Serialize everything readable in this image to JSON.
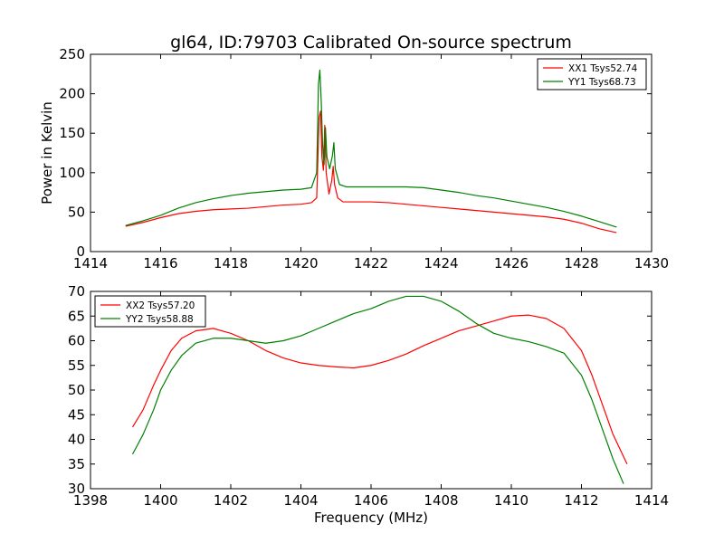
{
  "figure_title": "gl64, ID:79703 Calibrated On-source spectrum",
  "chart_data": [
    {
      "type": "line",
      "title": "gl64, ID:79703 Calibrated On-source spectrum",
      "xlabel": "",
      "ylabel": "Power in Kelvin",
      "xlim": [
        1414,
        1430
      ],
      "ylim": [
        0,
        250
      ],
      "xticks": [
        1414,
        1416,
        1418,
        1420,
        1422,
        1424,
        1426,
        1428,
        1430
      ],
      "yticks": [
        0,
        50,
        100,
        150,
        200,
        250
      ],
      "grid": false,
      "legend_position": "top-right",
      "series": [
        {
          "name": "XX1 Tsys52.74",
          "color": "#ff0000",
          "points": [
            [
              1415.0,
              32
            ],
            [
              1415.5,
              37
            ],
            [
              1416.0,
              43
            ],
            [
              1416.5,
              48
            ],
            [
              1417.0,
              51
            ],
            [
              1417.5,
              53
            ],
            [
              1418.0,
              54
            ],
            [
              1418.5,
              55
            ],
            [
              1419.0,
              57
            ],
            [
              1419.5,
              59
            ],
            [
              1420.0,
              60
            ],
            [
              1420.3,
              62
            ],
            [
              1420.45,
              68
            ],
            [
              1420.52,
              170
            ],
            [
              1420.56,
              178
            ],
            [
              1420.6,
              120
            ],
            [
              1420.64,
              103
            ],
            [
              1420.68,
              160
            ],
            [
              1420.72,
              100
            ],
            [
              1420.8,
              73
            ],
            [
              1420.88,
              90
            ],
            [
              1420.92,
              108
            ],
            [
              1420.96,
              85
            ],
            [
              1421.05,
              68
            ],
            [
              1421.2,
              63
            ],
            [
              1421.5,
              63
            ],
            [
              1422.0,
              63
            ],
            [
              1422.5,
              62
            ],
            [
              1423.0,
              60
            ],
            [
              1423.5,
              58
            ],
            [
              1424.0,
              56
            ],
            [
              1424.5,
              54
            ],
            [
              1425.0,
              52
            ],
            [
              1425.5,
              50
            ],
            [
              1426.0,
              48
            ],
            [
              1426.5,
              46
            ],
            [
              1427.0,
              44
            ],
            [
              1427.5,
              41
            ],
            [
              1428.0,
              36
            ],
            [
              1428.5,
              29
            ],
            [
              1429.0,
              24
            ]
          ]
        },
        {
          "name": "YY1 Tsys68.73",
          "color": "#008000",
          "points": [
            [
              1415.0,
              33
            ],
            [
              1415.5,
              39
            ],
            [
              1416.0,
              46
            ],
            [
              1416.5,
              55
            ],
            [
              1417.0,
              62
            ],
            [
              1417.5,
              67
            ],
            [
              1418.0,
              71
            ],
            [
              1418.5,
              74
            ],
            [
              1419.0,
              76
            ],
            [
              1419.5,
              78
            ],
            [
              1420.0,
              79
            ],
            [
              1420.3,
              81
            ],
            [
              1420.45,
              100
            ],
            [
              1420.5,
              212
            ],
            [
              1420.54,
              230
            ],
            [
              1420.58,
              190
            ],
            [
              1420.62,
              135
            ],
            [
              1420.66,
              110
            ],
            [
              1420.7,
              157
            ],
            [
              1420.74,
              120
            ],
            [
              1420.82,
              105
            ],
            [
              1420.9,
              122
            ],
            [
              1420.94,
              138
            ],
            [
              1420.98,
              105
            ],
            [
              1421.1,
              85
            ],
            [
              1421.3,
              82
            ],
            [
              1421.5,
              82
            ],
            [
              1422.0,
              82
            ],
            [
              1422.5,
              82
            ],
            [
              1423.0,
              82
            ],
            [
              1423.5,
              81
            ],
            [
              1424.0,
              78
            ],
            [
              1424.5,
              75
            ],
            [
              1425.0,
              71
            ],
            [
              1425.5,
              68
            ],
            [
              1426.0,
              64
            ],
            [
              1426.5,
              60
            ],
            [
              1427.0,
              56
            ],
            [
              1427.5,
              51
            ],
            [
              1428.0,
              45
            ],
            [
              1428.5,
              38
            ],
            [
              1429.0,
              31
            ]
          ]
        }
      ]
    },
    {
      "type": "line",
      "title": "",
      "xlabel": "Frequency (MHz)",
      "ylabel": "",
      "xlim": [
        1398,
        1414
      ],
      "ylim": [
        30,
        70
      ],
      "xticks": [
        1398,
        1400,
        1402,
        1404,
        1406,
        1408,
        1410,
        1412,
        1414
      ],
      "yticks": [
        30,
        35,
        40,
        45,
        50,
        55,
        60,
        65,
        70
      ],
      "grid": false,
      "legend_position": "top-left",
      "series": [
        {
          "name": "XX2 Tsys57.20",
          "color": "#ff0000",
          "points": [
            [
              1399.2,
              42.5
            ],
            [
              1399.5,
              46
            ],
            [
              1399.8,
              51
            ],
            [
              1400.0,
              54
            ],
            [
              1400.3,
              58
            ],
            [
              1400.6,
              60.5
            ],
            [
              1401.0,
              62
            ],
            [
              1401.5,
              62.5
            ],
            [
              1402.0,
              61.5
            ],
            [
              1402.5,
              60
            ],
            [
              1403.0,
              58
            ],
            [
              1403.5,
              56.5
            ],
            [
              1404.0,
              55.5
            ],
            [
              1404.5,
              55
            ],
            [
              1405.0,
              54.7
            ],
            [
              1405.5,
              54.5
            ],
            [
              1406.0,
              55
            ],
            [
              1406.5,
              56
            ],
            [
              1407.0,
              57.3
            ],
            [
              1407.5,
              59
            ],
            [
              1408.0,
              60.5
            ],
            [
              1408.5,
              62
            ],
            [
              1409.0,
              63
            ],
            [
              1409.5,
              64
            ],
            [
              1410.0,
              65
            ],
            [
              1410.5,
              65.2
            ],
            [
              1411.0,
              64.5
            ],
            [
              1411.5,
              62.5
            ],
            [
              1412.0,
              58
            ],
            [
              1412.3,
              53
            ],
            [
              1412.6,
              47
            ],
            [
              1412.9,
              41
            ],
            [
              1413.3,
              35
            ]
          ]
        },
        {
          "name": "YY2 Tsys58.88",
          "color": "#008000",
          "points": [
            [
              1399.2,
              37
            ],
            [
              1399.5,
              41
            ],
            [
              1399.8,
              46
            ],
            [
              1400.0,
              50
            ],
            [
              1400.3,
              54
            ],
            [
              1400.6,
              57
            ],
            [
              1401.0,
              59.5
            ],
            [
              1401.5,
              60.5
            ],
            [
              1402.0,
              60.5
            ],
            [
              1402.5,
              60
            ],
            [
              1403.0,
              59.5
            ],
            [
              1403.5,
              60
            ],
            [
              1404.0,
              61
            ],
            [
              1404.5,
              62.5
            ],
            [
              1405.0,
              64
            ],
            [
              1405.5,
              65.5
            ],
            [
              1406.0,
              66.5
            ],
            [
              1406.5,
              68
            ],
            [
              1407.0,
              69
            ],
            [
              1407.5,
              69
            ],
            [
              1408.0,
              68
            ],
            [
              1408.5,
              66
            ],
            [
              1409.0,
              63.5
            ],
            [
              1409.5,
              61.5
            ],
            [
              1410.0,
              60.5
            ],
            [
              1410.5,
              59.8
            ],
            [
              1411.0,
              58.8
            ],
            [
              1411.5,
              57.5
            ],
            [
              1412.0,
              53
            ],
            [
              1412.3,
              48
            ],
            [
              1412.6,
              42
            ],
            [
              1412.9,
              36
            ],
            [
              1413.2,
              31
            ]
          ]
        }
      ]
    }
  ]
}
